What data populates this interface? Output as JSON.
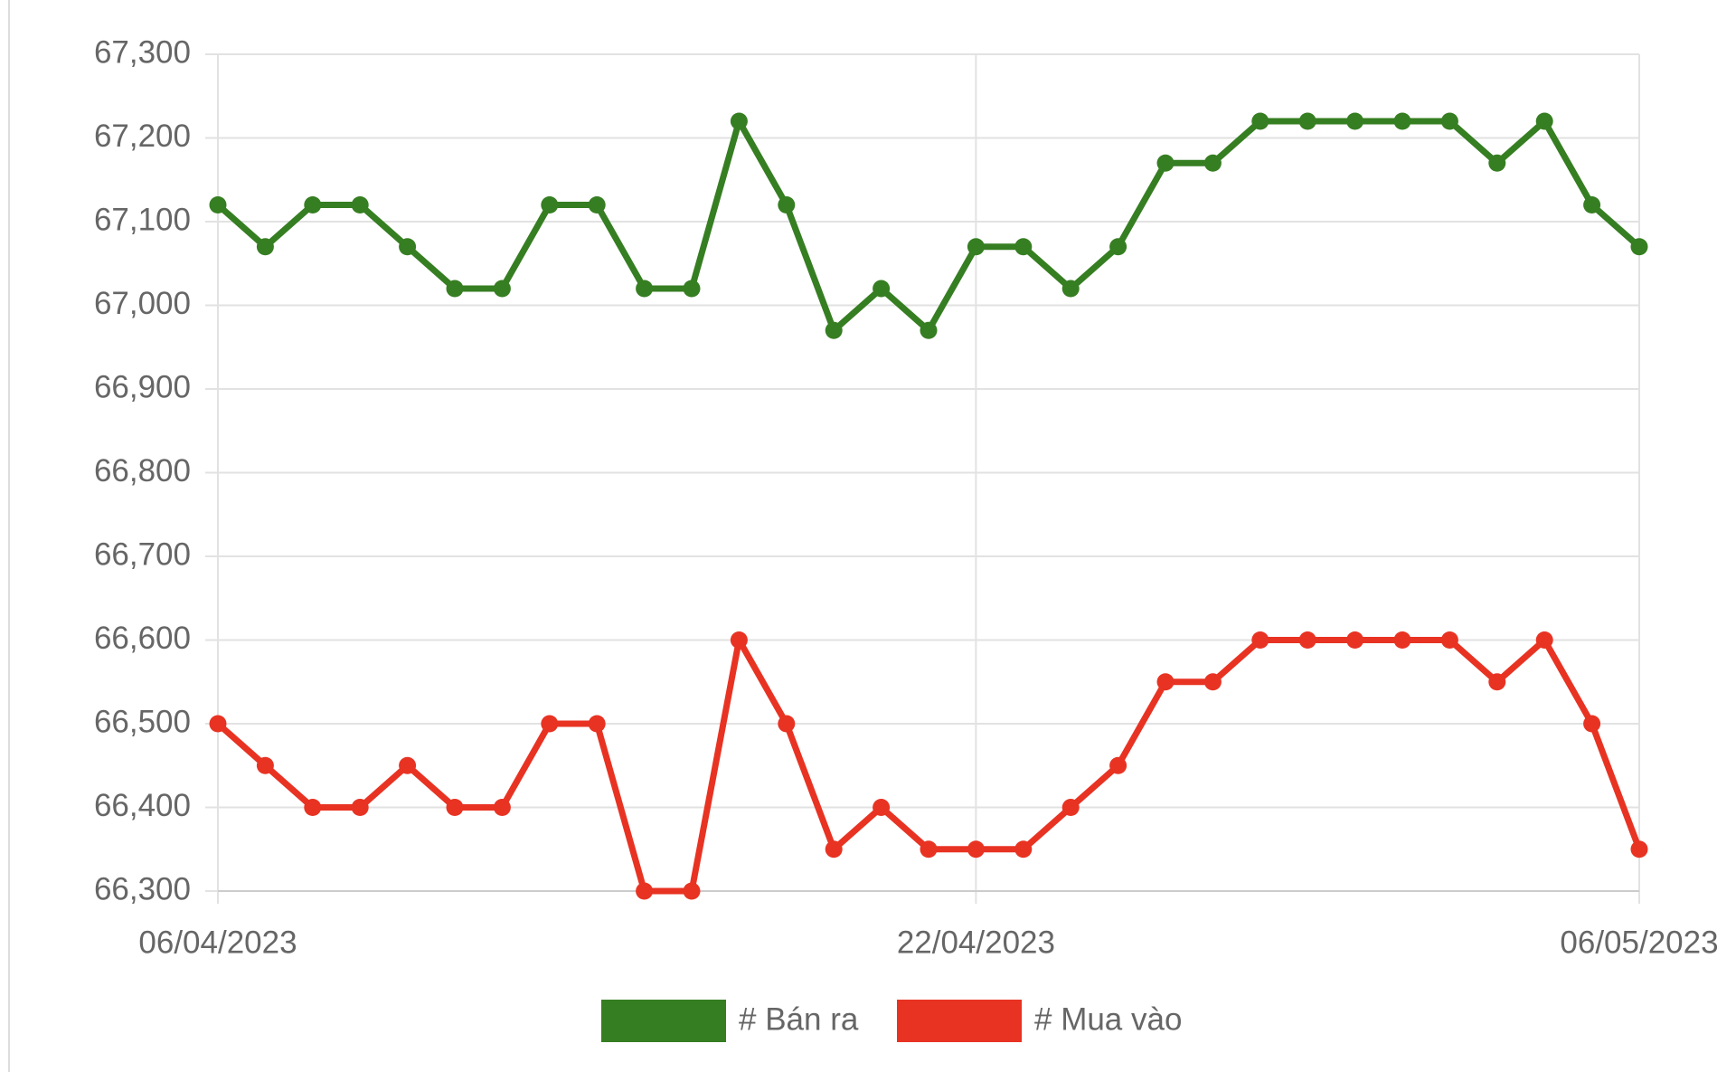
{
  "chart_data": {
    "type": "line",
    "categories": [
      "06/04/2023",
      null,
      null,
      null,
      null,
      null,
      null,
      null,
      null,
      null,
      null,
      null,
      null,
      null,
      null,
      null,
      "22/04/2023",
      null,
      null,
      null,
      null,
      null,
      null,
      null,
      null,
      null,
      null,
      null,
      null,
      null,
      "06/05/2023"
    ],
    "series": [
      {
        "name": "# Bán ra",
        "color": "#367e22",
        "values": [
          67120,
          67070,
          67120,
          67120,
          67070,
          67020,
          67020,
          67120,
          67120,
          67020,
          67020,
          67220,
          67120,
          66970,
          67020,
          66970,
          67070,
          67070,
          67020,
          67070,
          67170,
          67170,
          67220,
          67220,
          67220,
          67220,
          67220,
          67170,
          67220,
          67120,
          67070
        ]
      },
      {
        "name": "# Mua vào",
        "color": "#e83323",
        "values": [
          66500,
          66450,
          66400,
          66400,
          66450,
          66400,
          66400,
          66500,
          66500,
          66300,
          66300,
          66600,
          66500,
          66350,
          66400,
          66350,
          66350,
          66350,
          66400,
          66450,
          66550,
          66550,
          66600,
          66600,
          66600,
          66600,
          66600,
          66550,
          66600,
          66500,
          66350
        ]
      }
    ],
    "ylim": [
      66300,
      67300
    ],
    "yticks": [
      {
        "value": 66300,
        "label": "66,300"
      },
      {
        "value": 66400,
        "label": "66,400"
      },
      {
        "value": 66500,
        "label": "66,500"
      },
      {
        "value": 66600,
        "label": "66,600"
      },
      {
        "value": 66700,
        "label": "66,700"
      },
      {
        "value": 66800,
        "label": "66,800"
      },
      {
        "value": 66900,
        "label": "66,900"
      },
      {
        "value": 67000,
        "label": "67,000"
      },
      {
        "value": 67100,
        "label": "67,100"
      },
      {
        "value": 67200,
        "label": "67,200"
      },
      {
        "value": 67300,
        "label": "67,300"
      }
    ],
    "grid": true,
    "legend": "bottom"
  }
}
